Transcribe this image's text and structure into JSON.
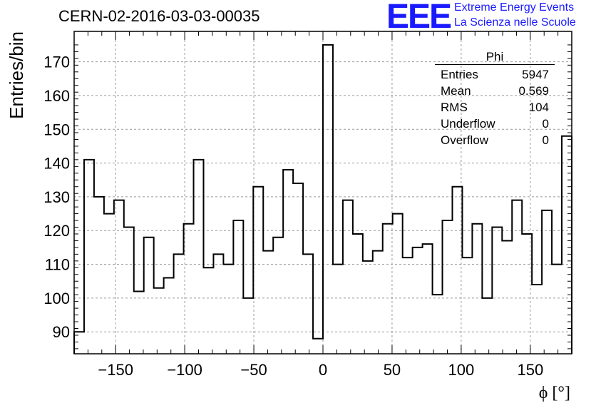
{
  "header": {
    "title": "CERN-02-2016-03-03-00035",
    "logo_text": "EEE",
    "logo_line1": "Extreme Energy Events",
    "logo_line2": "La Scienza nelle Scuole"
  },
  "stats_box": {
    "title": "Phi",
    "rows": [
      {
        "label": "Entries",
        "value": "5947"
      },
      {
        "label": "Mean",
        "value": "0.569"
      },
      {
        "label": "RMS",
        "value": "104"
      },
      {
        "label": "Underflow",
        "value": "0"
      },
      {
        "label": "Overflow",
        "value": "0"
      }
    ]
  },
  "chart_data": {
    "type": "histogram",
    "title": "CERN-02-2016-03-03-00035",
    "xlabel": "ϕ [°]",
    "ylabel": "Entries/bin",
    "xlim": [
      -180,
      180
    ],
    "ylim": [
      83.5,
      179
    ],
    "bin_width": 7.2,
    "x_ticks": [
      -150,
      -100,
      -50,
      0,
      50,
      100,
      150
    ],
    "y_ticks": [
      90,
      100,
      110,
      120,
      130,
      140,
      150,
      160,
      170
    ],
    "grid": true,
    "values": [
      90,
      141,
      130,
      125,
      129,
      121,
      102,
      118,
      103,
      106,
      113,
      122,
      141,
      109,
      113,
      110,
      123,
      100,
      133,
      114,
      118,
      138,
      134,
      113,
      88,
      175,
      110,
      129,
      119,
      111,
      114,
      122,
      125,
      112,
      115,
      116,
      101,
      123,
      133,
      112,
      122,
      100,
      121,
      117,
      129,
      119,
      104,
      126,
      110,
      148
    ],
    "line_color": "#000000",
    "grid_color": "#999999"
  }
}
